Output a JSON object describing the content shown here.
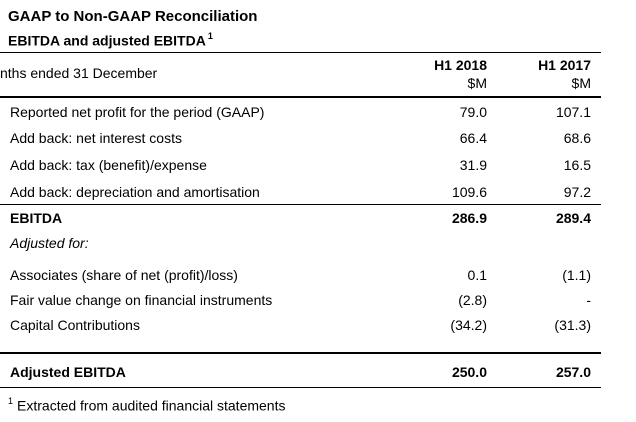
{
  "title": "GAAP to Non-GAAP Reconciliation",
  "subtitle": {
    "text": "EBITDA and adjusted EBITDA",
    "footnote_marker": "1"
  },
  "header": {
    "period_label": "nths ended 31 December",
    "columns": [
      {
        "period": "H1 2018",
        "unit": "$M"
      },
      {
        "period": "H1 2017",
        "unit": "$M"
      }
    ]
  },
  "rows": [
    {
      "label": "Reported net profit for the period (GAAP)",
      "h1_2018": "79.0",
      "h1_2017": "107.1"
    },
    {
      "label": "Add back: net interest costs",
      "h1_2018": "66.4",
      "h1_2017": "68.6"
    },
    {
      "label": "Add back: tax (benefit)/expense",
      "h1_2018": "31.9",
      "h1_2017": "16.5"
    },
    {
      "label": "Add back: depreciation and amortisation",
      "h1_2018": "109.6",
      "h1_2017": "97.2"
    },
    {
      "label": "EBITDA",
      "h1_2018": "286.9",
      "h1_2017": "289.4"
    },
    {
      "label": "Adjusted for:",
      "h1_2018": "",
      "h1_2017": ""
    },
    {
      "label": "Associates (share of net (profit)/loss)",
      "h1_2018": "0.1",
      "h1_2017": "(1.1)"
    },
    {
      "label": "Fair value change on financial instruments",
      "h1_2018": "(2.8)",
      "h1_2017": "-"
    },
    {
      "label": "Capital Contributions",
      "h1_2018": "(34.2)",
      "h1_2017": "(31.3)"
    },
    {
      "label": "Adjusted EBITDA",
      "h1_2018": "250.0",
      "h1_2017": "257.0"
    }
  ],
  "footnote": {
    "marker": "1",
    "text": "Extracted from audited financial statements"
  }
}
